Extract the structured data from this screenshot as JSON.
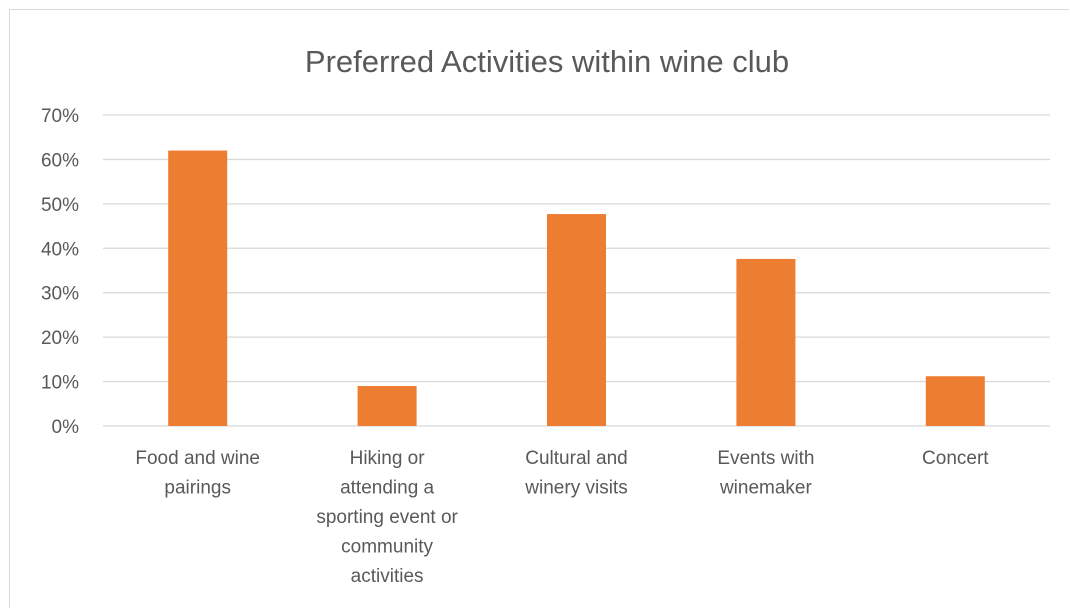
{
  "chart_data": {
    "type": "bar",
    "title": "Preferred Activities within wine club",
    "xlabel": "",
    "ylabel": "",
    "categories": [
      [
        "Food and wine",
        "pairings"
      ],
      [
        "Hiking or",
        "attending a",
        "sporting event or",
        "community",
        "activities"
      ],
      [
        "Cultural and",
        "winery visits"
      ],
      [
        "Events with",
        "winemaker"
      ],
      [
        "Concert"
      ]
    ],
    "values": [
      0.62,
      0.09,
      0.477,
      0.376,
      0.112
    ],
    "ylim": [
      0,
      0.7
    ],
    "yticks": [
      0,
      0.1,
      0.2,
      0.3,
      0.4,
      0.5,
      0.6,
      0.7
    ],
    "ytick_labels": [
      "0%",
      "10%",
      "20%",
      "30%",
      "40%",
      "50%",
      "60%",
      "70%"
    ],
    "grid": true,
    "legend": "none",
    "bar_color": "#ED7D31",
    "grid_color": "#d9d9d9"
  }
}
